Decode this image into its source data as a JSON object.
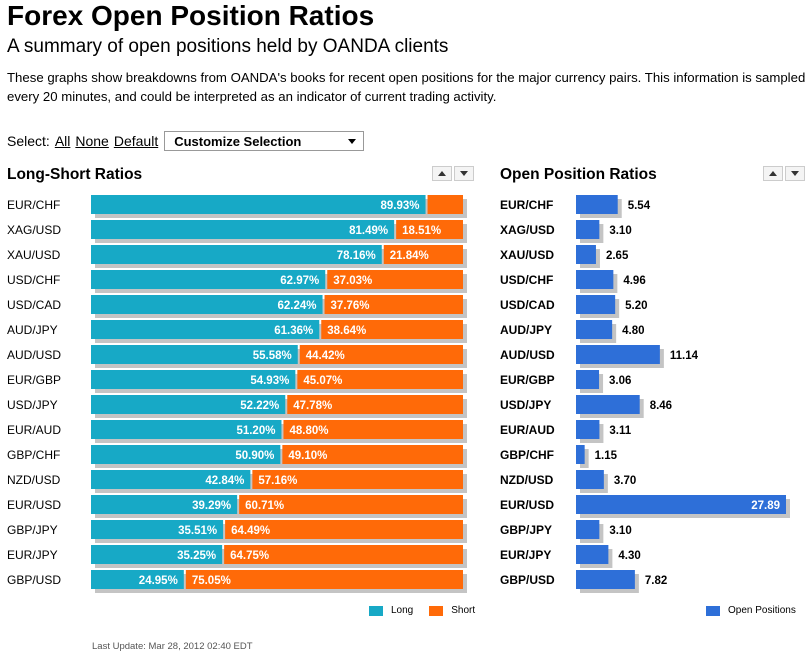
{
  "header": {
    "title": "Forex Open Position Ratios",
    "subtitle": "A summary of open positions held by OANDA clients",
    "description": "These graphs show breakdowns from OANDA's books for recent open positions for the major currency pairs. This information is sampled every 20 minutes, and could be interpreted as an indicator of current trading activity."
  },
  "select": {
    "label": "Select:",
    "all": "All",
    "none": "None",
    "default": "Default",
    "dropdown": "Customize Selection"
  },
  "footer": {
    "last_update": "Last Update: Mar 28, 2012 02:40 EDT"
  },
  "colors": {
    "long": "#17a9c6",
    "short": "#ff6a08",
    "open": "#2e6fd8",
    "shadow": "#c4c4c4"
  },
  "icons": {
    "sort_up": "sort-up-icon",
    "sort_down": "sort-down-icon",
    "dropdown": "chevron-down-icon"
  },
  "chart_data": [
    {
      "type": "bar",
      "title": "Long-Short Ratios",
      "stacked": true,
      "categories": [
        "EUR/CHF",
        "XAG/USD",
        "XAU/USD",
        "USD/CHF",
        "USD/CAD",
        "AUD/JPY",
        "AUD/USD",
        "EUR/GBP",
        "USD/JPY",
        "EUR/AUD",
        "GBP/CHF",
        "NZD/USD",
        "EUR/USD",
        "GBP/JPY",
        "EUR/JPY",
        "GBP/USD"
      ],
      "series": [
        {
          "name": "Long",
          "values": [
            89.93,
            81.49,
            78.16,
            62.97,
            62.24,
            61.36,
            55.58,
            54.93,
            52.22,
            51.2,
            50.9,
            42.84,
            39.29,
            35.51,
            35.25,
            24.95
          ],
          "labels": [
            "89.93%",
            "81.49%",
            "78.16%",
            "62.97%",
            "62.24%",
            "61.36%",
            "55.58%",
            "54.93%",
            "52.22%",
            "51.20%",
            "50.90%",
            "42.84%",
            "39.29%",
            "35.51%",
            "35.25%",
            "24.95%"
          ]
        },
        {
          "name": "Short",
          "values": [
            10.07,
            18.51,
            21.84,
            37.03,
            37.76,
            38.64,
            44.42,
            45.07,
            47.78,
            48.8,
            49.1,
            57.16,
            60.71,
            64.49,
            64.75,
            75.05
          ],
          "labels": [
            "",
            "18.51%",
            "21.84%",
            "37.03%",
            "37.76%",
            "38.64%",
            "44.42%",
            "45.07%",
            "47.78%",
            "48.80%",
            "49.10%",
            "57.16%",
            "60.71%",
            "64.49%",
            "64.75%",
            "75.05%"
          ]
        }
      ],
      "xlim": [
        0,
        100
      ],
      "legend": "bottom-right",
      "grid": false
    },
    {
      "type": "bar",
      "title": "Open Position Ratios",
      "categories": [
        "EUR/CHF",
        "XAG/USD",
        "XAU/USD",
        "USD/CHF",
        "USD/CAD",
        "AUD/JPY",
        "AUD/USD",
        "EUR/GBP",
        "USD/JPY",
        "EUR/AUD",
        "GBP/CHF",
        "NZD/USD",
        "EUR/USD",
        "GBP/JPY",
        "EUR/JPY",
        "GBP/USD"
      ],
      "series": [
        {
          "name": "Open Positions",
          "values": [
            5.54,
            3.1,
            2.65,
            4.96,
            5.2,
            4.8,
            11.14,
            3.06,
            8.46,
            3.11,
            1.15,
            3.7,
            27.89,
            3.1,
            4.3,
            7.82
          ],
          "labels": [
            "5.54",
            "3.10",
            "2.65",
            "4.96",
            "5.20",
            "4.80",
            "11.14",
            "3.06",
            "8.46",
            "3.11",
            "1.15",
            "3.70",
            "27.89",
            "3.10",
            "4.30",
            "7.82"
          ]
        }
      ],
      "xlim": [
        0,
        27.89
      ],
      "legend": "bottom-right",
      "grid": false
    }
  ]
}
